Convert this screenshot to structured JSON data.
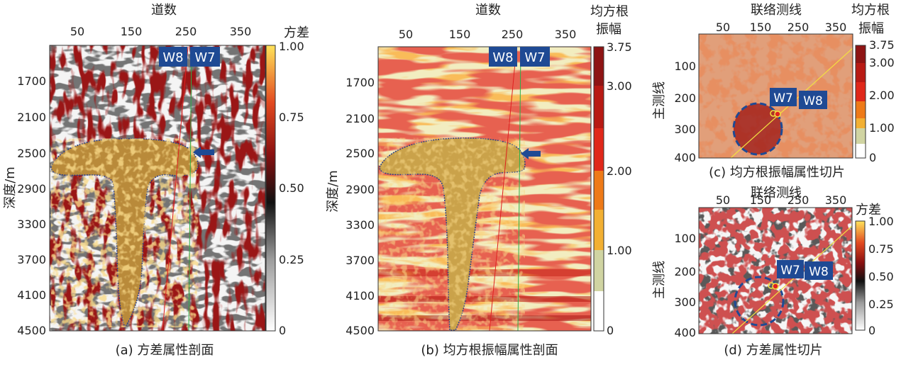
{
  "colors": {
    "variance_cmap": [
      "#ffffff",
      "#000000",
      "#a01010",
      "#e24020",
      "#f3c020",
      "#ffe87a"
    ],
    "rms_cmap": [
      "#ffffff",
      "#ccd3a0",
      "#f0a830",
      "#e87810",
      "#cf1e10",
      "#9a0f12"
    ],
    "well_w7": "#2bb04a",
    "well_w8": "#e02020",
    "label_bg": "#1f4a94",
    "arrow": "#1f4a94",
    "salt_outline": "#2a3f8a",
    "circle": "#1f4a94"
  },
  "panel_a": {
    "title": "道数",
    "x_ticks": [
      "50",
      "150",
      "250",
      "350"
    ],
    "y_label": "深度/m",
    "y_ticks": [
      "1700",
      "2100",
      "2500",
      "2900",
      "3300",
      "3700",
      "4100",
      "4500"
    ],
    "well_labels": [
      "W8",
      "W7"
    ],
    "caption": "(a) 方差属性剖面",
    "colorbar": {
      "title": "方差",
      "ticks": [
        "1.00",
        "0.75",
        "0.50",
        "0.25",
        "0"
      ]
    }
  },
  "panel_b": {
    "title": "道数",
    "x_ticks": [
      "50",
      "150",
      "250",
      "350"
    ],
    "y_label": "深度/m",
    "y_ticks": [
      "1700",
      "2100",
      "2500",
      "2900",
      "3300",
      "3700",
      "4100",
      "4500"
    ],
    "well_labels": [
      "W8",
      "W7"
    ],
    "caption": "(b) 均方根振幅属性剖面",
    "colorbar": {
      "title_line1": "均方根",
      "title_line2": "振幅",
      "ticks": [
        "3.75",
        "3.00",
        "2.00",
        "1.00",
        "0"
      ]
    }
  },
  "panel_c": {
    "title": "联络测线",
    "x_ticks": [
      "50",
      "150",
      "250",
      "350"
    ],
    "y_label": "主测线",
    "y_ticks": [
      "100",
      "200",
      "300",
      "400"
    ],
    "well_labels": [
      "W7",
      "W8"
    ],
    "caption": "(c) 均方根振幅属性切片",
    "colorbar": {
      "title_line1": "均方根",
      "title_line2": "振幅",
      "ticks": [
        "3.75",
        "3.00",
        "2.00",
        "1.00",
        "0"
      ]
    }
  },
  "panel_d": {
    "title": "联络测线",
    "x_ticks": [
      "50",
      "150",
      "250",
      "350"
    ],
    "y_label": "主测线",
    "y_ticks": [
      "100",
      "200",
      "300",
      "400"
    ],
    "well_labels": [
      "W7",
      "W8"
    ],
    "caption": "(d) 方差属性切片",
    "colorbar": {
      "title": "方差",
      "ticks": [
        "1.00",
        "0.75",
        "0.50",
        "0.25",
        "0"
      ]
    }
  }
}
